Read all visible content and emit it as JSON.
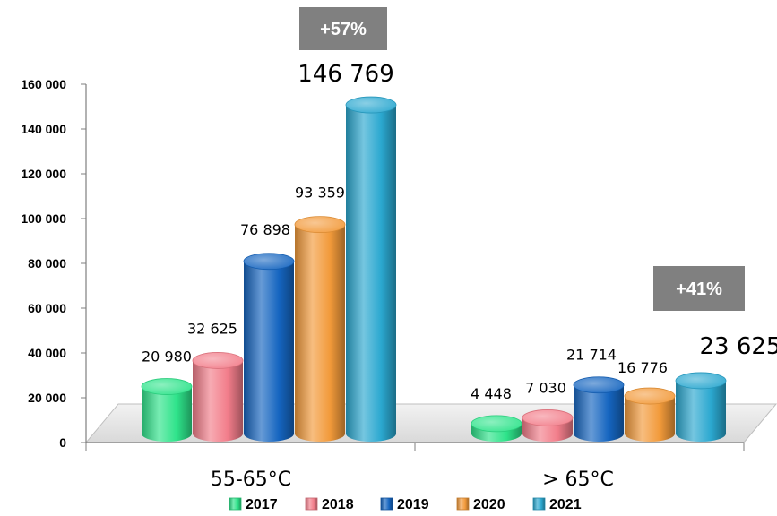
{
  "chart_data": {
    "type": "bar",
    "categories": [
      "55-65°C",
      "> 65°C"
    ],
    "series": [
      {
        "name": "2017",
        "values": [
          20980,
          4448
        ],
        "labels": [
          "20 980",
          "4 448"
        ],
        "color": "#2EE38A"
      },
      {
        "name": "2018",
        "values": [
          32625,
          7030
        ],
        "labels": [
          "32 625",
          "7 030"
        ],
        "color": "#F27D8A"
      },
      {
        "name": "2019",
        "values": [
          76898,
          21714
        ],
        "labels": [
          "76 898",
          "21 714"
        ],
        "color": "#1565C0"
      },
      {
        "name": "2020",
        "values": [
          93359,
          16776
        ],
        "labels": [
          "93 359",
          "16 776"
        ],
        "color": "#F29A3A"
      },
      {
        "name": "2021",
        "values": [
          146769,
          23625
        ],
        "labels": [
          "146 769",
          "23 625"
        ],
        "color": "#2BA8D0"
      }
    ],
    "ylim": [
      0,
      160000
    ],
    "yticks": [
      0,
      20000,
      40000,
      60000,
      80000,
      100000,
      120000,
      140000,
      160000
    ],
    "ytick_labels": [
      "0",
      "20 000",
      "40 000",
      "60 000",
      "80 000",
      "100 000",
      "120 000",
      "140 000",
      "160 000"
    ],
    "annotations": [
      {
        "category": "55-65°C",
        "text": "+57%"
      },
      {
        "category": "> 65°C",
        "text": "+41%"
      }
    ],
    "legend_position": "bottom",
    "title": "",
    "xlabel": "",
    "ylabel": "",
    "grid": false,
    "badge_color": "#808080"
  }
}
